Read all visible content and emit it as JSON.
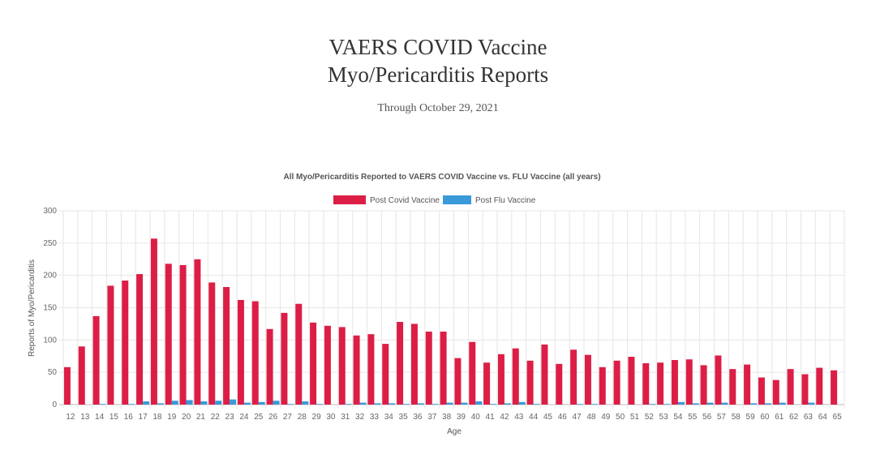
{
  "header": {
    "title_line1": "VAERS COVID Vaccine",
    "title_line2": "Myo/Pericarditis Reports",
    "subtitle": "Through October 29, 2021"
  },
  "chart_data": {
    "type": "bar",
    "title": "All Myo/Pericarditis Reported to VAERS COVID Vaccine vs. FLU Vaccine (all years)",
    "xlabel": "Age",
    "ylabel": "Reports of Myo/Pericarditis",
    "ylim": [
      0,
      300
    ],
    "yticks": [
      0,
      50,
      100,
      150,
      200,
      250,
      300
    ],
    "grid": true,
    "legend_position": "top",
    "categories": [
      "12",
      "13",
      "14",
      "15",
      "16",
      "17",
      "18",
      "19",
      "20",
      "21",
      "22",
      "23",
      "24",
      "25",
      "26",
      "27",
      "28",
      "29",
      "30",
      "31",
      "32",
      "33",
      "34",
      "35",
      "36",
      "37",
      "38",
      "39",
      "40",
      "41",
      "42",
      "43",
      "44",
      "45",
      "46",
      "47",
      "48",
      "49",
      "50",
      "51",
      "52",
      "53",
      "54",
      "55",
      "56",
      "57",
      "58",
      "59",
      "60",
      "61",
      "62",
      "63",
      "64",
      "65"
    ],
    "series": [
      {
        "name": "Post Covid Vaccine",
        "color": "#dc1e46",
        "values": [
          58,
          90,
          137,
          184,
          192,
          202,
          257,
          218,
          216,
          225,
          189,
          182,
          162,
          160,
          117,
          142,
          156,
          127,
          122,
          120,
          107,
          109,
          94,
          128,
          125,
          113,
          113,
          72,
          97,
          65,
          78,
          87,
          68,
          93,
          63,
          85,
          77,
          58,
          68,
          74,
          64,
          65,
          69,
          70,
          61,
          76,
          55,
          62,
          42,
          38,
          55,
          47,
          57,
          53
        ]
      },
      {
        "name": "Post Flu Vaccine",
        "color": "#3a9ad9",
        "values": [
          0,
          0,
          1,
          0,
          1,
          5,
          2,
          6,
          7,
          5,
          6,
          8,
          3,
          4,
          6,
          1,
          5,
          1,
          0,
          1,
          3,
          2,
          2,
          1,
          2,
          1,
          3,
          3,
          5,
          1,
          2,
          4,
          1,
          0,
          0,
          1,
          1,
          0,
          0,
          0,
          1,
          1,
          4,
          2,
          3,
          3,
          0,
          2,
          2,
          3,
          0,
          3,
          0,
          0
        ]
      }
    ]
  }
}
